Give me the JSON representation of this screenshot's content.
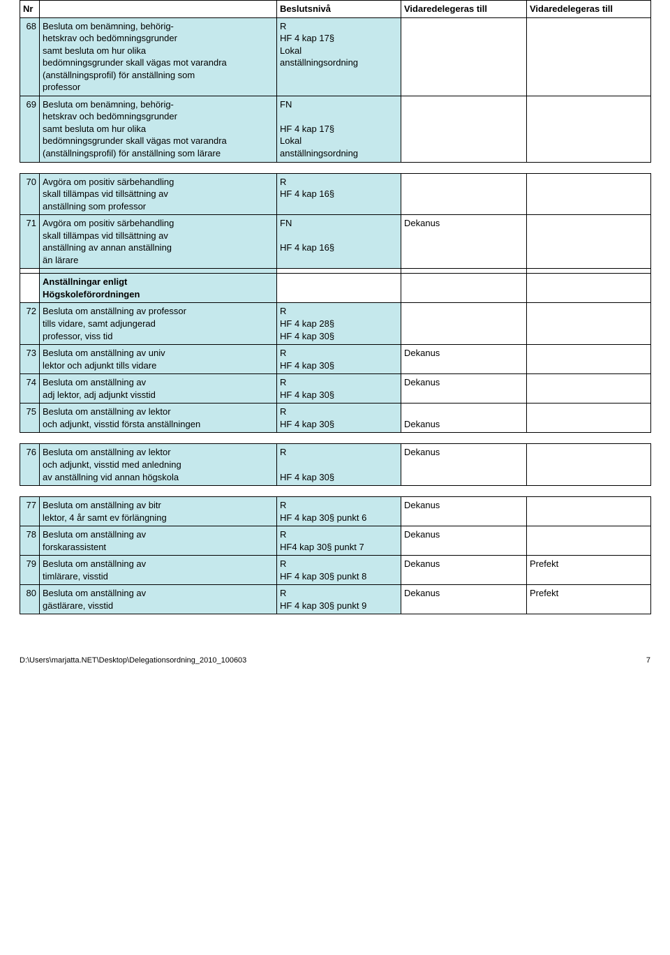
{
  "header": {
    "nr": "Nr",
    "desc": "",
    "beslutsniva": "Beslutsnivå",
    "v1": "Vidaredelegeras till",
    "v2": "Vidaredelegeras till"
  },
  "rows": [
    {
      "type": "data",
      "nr": "68",
      "shadeNr": true,
      "shadeDesc": true,
      "shadeBesl": true,
      "desc": "Besluta om benämning, behörig-\nhetskrav och bedömningsgrunder\nsamt besluta om hur olika\nbedömningsgrunder skall vägas mot varandra\n(anställningsprofil) för anställning som\nprofessor",
      "besl": "R\nHF 4 kap 17§\nLokal\nanställningsordning",
      "v1": "",
      "v2": ""
    },
    {
      "type": "data",
      "nr": "69",
      "shadeNr": true,
      "shadeDesc": true,
      "shadeBesl": true,
      "desc": "Besluta om benämning, behörig-\nhetskrav och bedömningsgrunder\nsamt besluta om hur olika\nbedömningsgrunder skall vägas mot varandra\n(anställningsprofil) för anställning som lärare",
      "besl": "FN\n\nHF 4 kap 17§\nLokal\nanställningsordning",
      "v1": "",
      "v2": ""
    },
    {
      "type": "spacer"
    },
    {
      "type": "data",
      "nr": "70",
      "shadeNr": true,
      "shadeDesc": true,
      "shadeBesl": true,
      "desc": "Avgöra om positiv särbehandling\nskall tillämpas vid tillsättning av\nanställning som professor",
      "besl": "R\nHF 4 kap 16§",
      "v1": "",
      "v2": ""
    },
    {
      "type": "data",
      "nr": "71",
      "shadeNr": true,
      "shadeDesc": true,
      "shadeBesl": true,
      "desc": "Avgöra om positiv särbehandling\nskall tillämpas vid tillsättning av\nanställning av annan anställning\nän lärare",
      "besl": "FN\n\nHF 4 kap 16§",
      "v1": "Dekanus",
      "v2": ""
    },
    {
      "type": "heading",
      "shadeDesc": true,
      "desc": "Anställningar enligt\nHögskoleförordningen",
      "besl": "",
      "v1": "",
      "v2": ""
    },
    {
      "type": "data",
      "nr": "72",
      "shadeNr": true,
      "shadeDesc": true,
      "shadeBesl": true,
      "desc": "Besluta om anställning av professor\ntills vidare, samt adjungerad\nprofessor, viss tid",
      "besl": "R\nHF 4 kap 28§\nHF 4 kap 30§",
      "v1": "",
      "v2": ""
    },
    {
      "type": "data",
      "nr": "73",
      "shadeNr": true,
      "shadeDesc": true,
      "shadeBesl": true,
      "desc": "Besluta om anställning av univ\nlektor och adjunkt tills vidare",
      "besl": "R\nHF 4 kap 30§",
      "v1": "Dekanus",
      "v2": ""
    },
    {
      "type": "data",
      "nr": "74",
      "shadeNr": true,
      "shadeDesc": true,
      "shadeBesl": true,
      "desc": "Besluta om anställning av\nadj lektor, adj adjunkt visstid",
      "besl": "R\nHF 4 kap 30§",
      "v1": "Dekanus",
      "v2": ""
    },
    {
      "type": "data",
      "nr": "75",
      "shadeNr": true,
      "shadeDesc": true,
      "shadeBesl": true,
      "desc": "Besluta om anställning av lektor\noch adjunkt, visstid första anställningen",
      "besl": "R\nHF 4 kap 30§",
      "v1": "\nDekanus",
      "v2": ""
    },
    {
      "type": "spacer"
    },
    {
      "type": "data",
      "nr": "76",
      "shadeNr": true,
      "shadeDesc": true,
      "shadeBesl": true,
      "desc": "Besluta om anställning av lektor\noch adjunkt, visstid med anledning\nav anställning vid annan högskola",
      "besl": "R\n\nHF 4 kap 30§",
      "v1": "Dekanus",
      "v2": ""
    },
    {
      "type": "spacer"
    },
    {
      "type": "data",
      "nr": "77",
      "shadeNr": true,
      "shadeDesc": true,
      "shadeBesl": true,
      "desc": "Besluta om anställning av bitr\nlektor, 4 år samt ev förlängning",
      "besl": "R\nHF 4 kap 30§ punkt 6",
      "v1": "Dekanus",
      "v2": ""
    },
    {
      "type": "data",
      "nr": "78",
      "shadeNr": true,
      "shadeDesc": true,
      "shadeBesl": true,
      "desc": "Besluta om anställning av\nforskarassistent",
      "besl": "R\nHF4 kap 30§ punkt 7",
      "v1": "Dekanus",
      "v2": ""
    },
    {
      "type": "data",
      "nr": "79",
      "shadeNr": true,
      "shadeDesc": true,
      "shadeBesl": true,
      "desc": "Besluta om anställning av\ntimlärare, visstid",
      "besl": "R\nHF 4 kap 30§ punkt 8",
      "v1": "Dekanus",
      "v2": "Prefekt"
    },
    {
      "type": "data",
      "nr": "80",
      "shadeNr": true,
      "shadeDesc": true,
      "shadeBesl": true,
      "desc": "Besluta om anställning av\ngästlärare, visstid",
      "besl": "R\nHF 4 kap 30§ punkt 9",
      "v1": "Dekanus",
      "v2": "Prefekt"
    }
  ],
  "footer": {
    "path": "D:\\Users\\marjatta.NET\\Desktop\\Delegationsordning_2010_100603",
    "page": "7"
  }
}
